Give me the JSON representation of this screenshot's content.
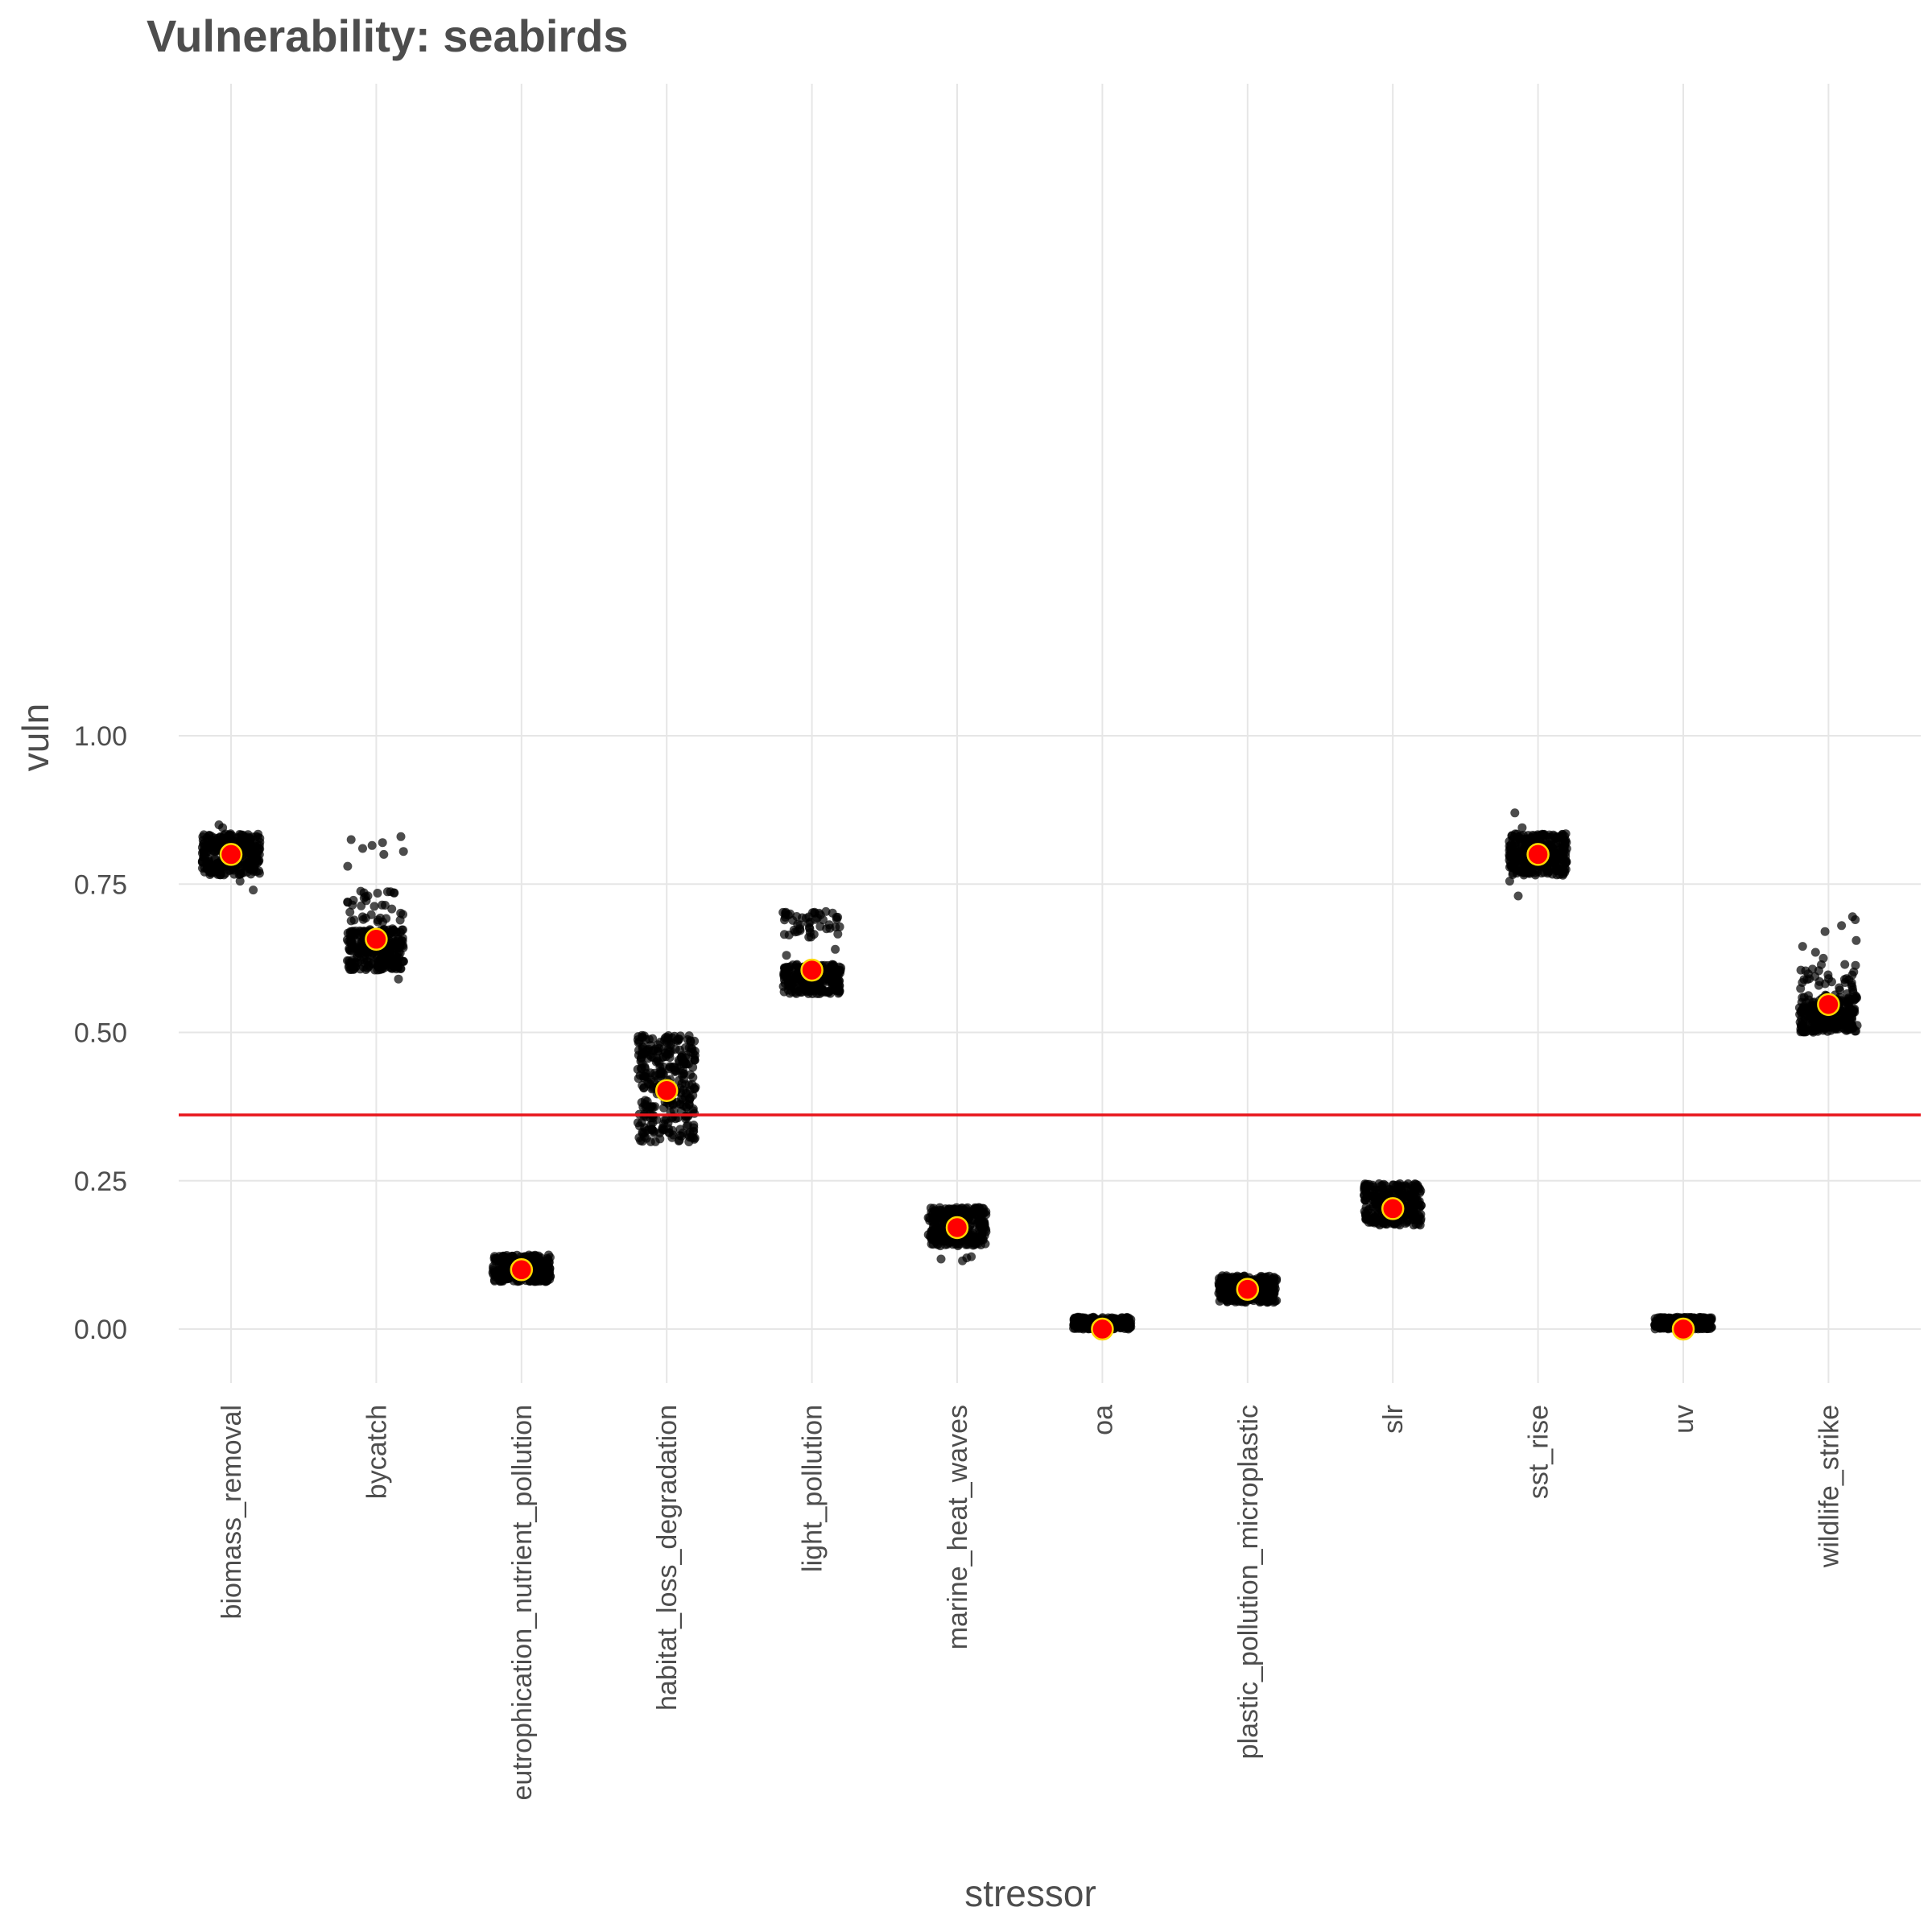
{
  "chart_data": {
    "type": "scatter",
    "title": "Vulnerability: seabirds",
    "xlabel": "stressor",
    "ylabel": "vuln",
    "categories": [
      "biomass_removal",
      "bycatch",
      "eutrophication_nutrient_pollution",
      "habitat_loss_degradation",
      "light_pollution",
      "marine_heat_waves",
      "oa",
      "plastic_pollution_microplastic",
      "slr",
      "sst_rise",
      "uv",
      "wildlife_strike"
    ],
    "y_ticks": [
      0.0,
      0.25,
      0.5,
      0.75,
      1.0
    ],
    "y_tick_labels": [
      "0.00",
      "0.25",
      "0.50",
      "0.75",
      "1.00"
    ],
    "ylim": [
      -0.05,
      1.05
    ],
    "grid": true,
    "reference_line": {
      "y": 0.361,
      "color": "#e8151b"
    },
    "jittered_points": [
      {
        "category": "biomass_removal",
        "clusters": [
          [
            0.765,
            0.835,
            300
          ]
        ],
        "outliers": [
          0.74,
          0.755,
          0.845,
          0.85
        ]
      },
      {
        "category": "bycatch",
        "clusters": [
          [
            0.605,
            0.675,
            260
          ],
          [
            0.685,
            0.74,
            35
          ]
        ],
        "outliers": [
          0.59,
          0.78,
          0.8,
          0.805,
          0.81,
          0.815,
          0.82,
          0.825,
          0.83
        ]
      },
      {
        "category": "eutrophication_nutrient_pollution",
        "clusters": [
          [
            0.08,
            0.125,
            300
          ]
        ],
        "outliers": []
      },
      {
        "category": "habitat_loss_degradation",
        "clusters": [
          [
            0.315,
            0.495,
            320
          ]
        ],
        "outliers": []
      },
      {
        "category": "light_pollution",
        "clusters": [
          [
            0.565,
            0.615,
            260
          ],
          [
            0.66,
            0.705,
            50
          ]
        ],
        "outliers": [
          0.63,
          0.64
        ]
      },
      {
        "category": "marine_heat_waves",
        "clusters": [
          [
            0.14,
            0.205,
            300
          ]
        ],
        "outliers": [
          0.115,
          0.118,
          0.12,
          0.122
        ]
      },
      {
        "category": "oa",
        "clusters": [
          [
            0.0,
            0.02,
            250
          ]
        ],
        "outliers": []
      },
      {
        "category": "plastic_pollution_microplastic",
        "clusters": [
          [
            0.045,
            0.09,
            300
          ]
        ],
        "outliers": []
      },
      {
        "category": "slr",
        "clusters": [
          [
            0.175,
            0.245,
            300
          ]
        ],
        "outliers": []
      },
      {
        "category": "sst_rise",
        "clusters": [
          [
            0.765,
            0.835,
            300
          ]
        ],
        "outliers": [
          0.73,
          0.755,
          0.845,
          0.87
        ]
      },
      {
        "category": "uv",
        "clusters": [
          [
            0.0,
            0.02,
            250
          ]
        ],
        "outliers": []
      },
      {
        "category": "wildlife_strike",
        "clusters": [
          [
            0.5,
            0.56,
            260
          ],
          [
            0.56,
            0.615,
            40
          ]
        ],
        "outliers": [
          0.625,
          0.635,
          0.645,
          0.655,
          0.67,
          0.68,
          0.69,
          0.695
        ]
      }
    ],
    "mean_points": [
      {
        "category": "biomass_removal",
        "value": 0.8
      },
      {
        "category": "bycatch",
        "value": 0.657
      },
      {
        "category": "eutrophication_nutrient_pollution",
        "value": 0.1
      },
      {
        "category": "habitat_loss_degradation",
        "value": 0.402
      },
      {
        "category": "light_pollution",
        "value": 0.605
      },
      {
        "category": "marine_heat_waves",
        "value": 0.171
      },
      {
        "category": "oa",
        "value": 0.0
      },
      {
        "category": "plastic_pollution_microplastic",
        "value": 0.067
      },
      {
        "category": "slr",
        "value": 0.203
      },
      {
        "category": "sst_rise",
        "value": 0.8
      },
      {
        "category": "uv",
        "value": 0.0
      },
      {
        "category": "wildlife_strike",
        "value": 0.547
      }
    ],
    "colors": {
      "points": "#000000",
      "mean_fill": "#ff0000",
      "mean_stroke": "#ffd700",
      "reference_line": "#e8151b",
      "grid": "#e6e6e6",
      "text": "#4d4d4d"
    }
  }
}
